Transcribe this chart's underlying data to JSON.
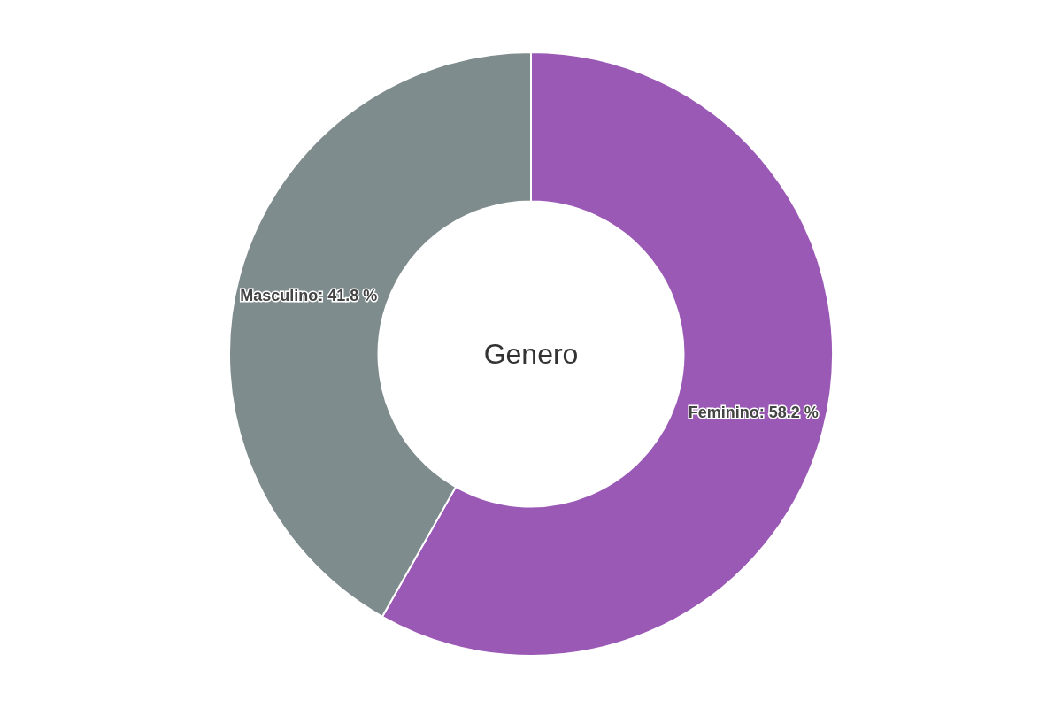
{
  "chart_data": {
    "type": "donut",
    "title": "Genero",
    "categories": [
      "Feminino",
      "Masculino"
    ],
    "values": [
      58.2,
      41.8
    ],
    "value_labels": [
      "58.2 %",
      "41.8 %"
    ],
    "colors": [
      "#9b59b6",
      "#7f8c8d"
    ],
    "legend": false
  }
}
